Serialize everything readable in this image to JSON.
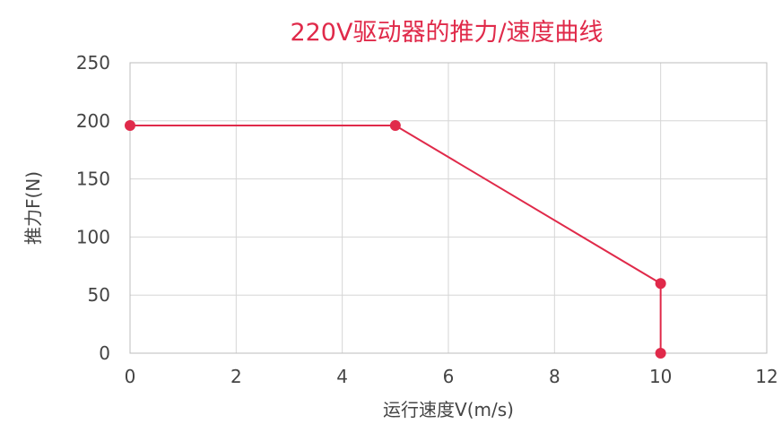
{
  "chart_data": {
    "type": "line",
    "title": "220V驱动器的推力/速度曲线",
    "xlabel": "运行速度V(m/s)",
    "ylabel": "推力F(N)",
    "xlim": [
      0,
      12
    ],
    "ylim": [
      0,
      250
    ],
    "xticks": [
      0,
      2,
      4,
      6,
      8,
      10,
      12
    ],
    "yticks": [
      0,
      50,
      100,
      150,
      200,
      250
    ],
    "grid": true,
    "legend": "none",
    "series": [
      {
        "color": "#e02a4a",
        "x": [
          0,
          5,
          10,
          10
        ],
        "y": [
          196,
          196,
          60,
          0
        ]
      }
    ]
  }
}
